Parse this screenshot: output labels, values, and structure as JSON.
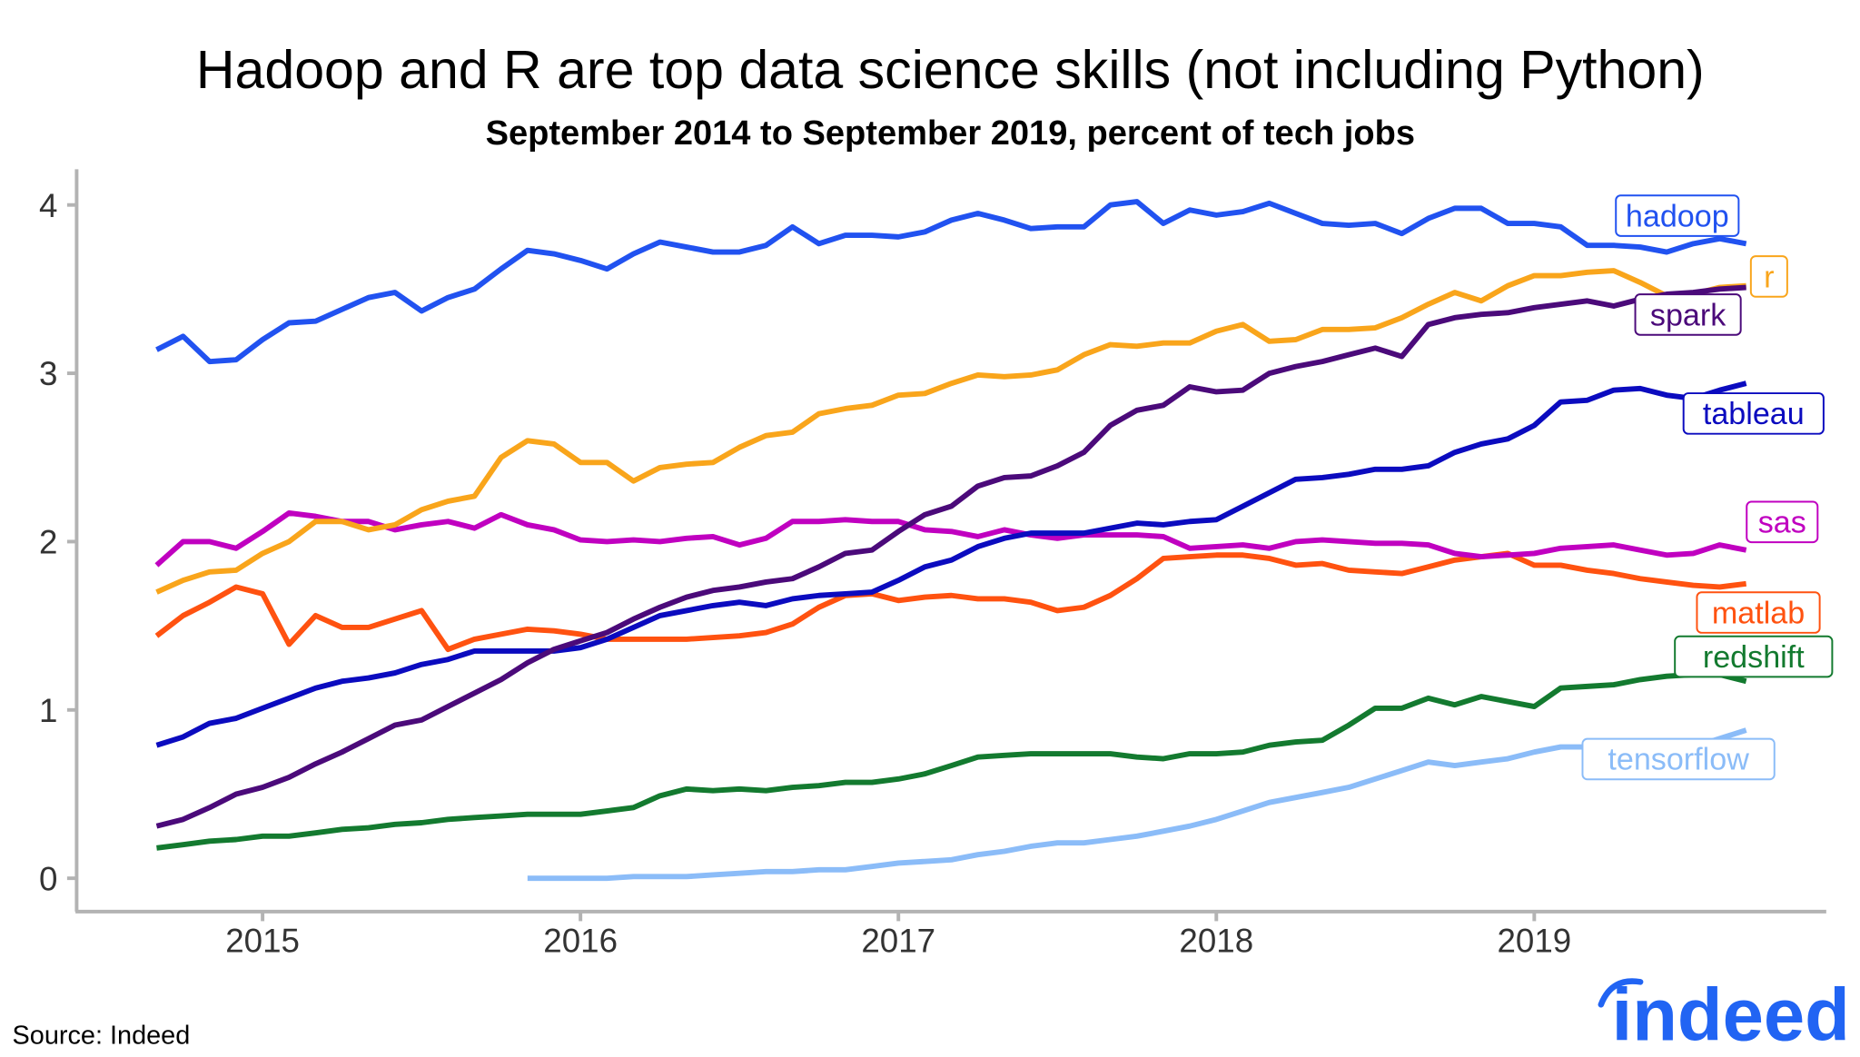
{
  "chart_data": {
    "type": "line",
    "title": "Hadoop and R are top data science skills (not including Python)",
    "subtitle": "September 2014 to September 2019, percent of tech jobs",
    "xlabel": "",
    "ylabel": "",
    "xlim": [
      "2014-09",
      "2019-09"
    ],
    "ylim": [
      0,
      4
    ],
    "x_ticks": [
      "2015",
      "2016",
      "2017",
      "2018",
      "2019"
    ],
    "y_ticks": [
      "0",
      "1",
      "2",
      "3",
      "4"
    ],
    "grid": false,
    "legend": "direct labels at right end of lines",
    "start_month": "2014-09",
    "frequency": "monthly",
    "series": [
      {
        "name": "hadoop",
        "color": "#2152f0",
        "values": [
          3.14,
          3.22,
          3.07,
          3.08,
          3.2,
          3.3,
          3.31,
          3.38,
          3.45,
          3.48,
          3.37,
          3.45,
          3.5,
          3.62,
          3.73,
          3.71,
          3.67,
          3.62,
          3.71,
          3.78,
          3.75,
          3.72,
          3.72,
          3.76,
          3.87,
          3.77,
          3.82,
          3.82,
          3.81,
          3.84,
          3.91,
          3.95,
          3.91,
          3.86,
          3.87,
          3.87,
          4.0,
          4.02,
          3.89,
          3.97,
          3.94,
          3.96,
          4.01,
          3.95,
          3.89,
          3.88,
          3.89,
          3.83,
          3.92,
          3.98,
          3.98,
          3.89,
          3.89,
          3.87,
          3.76,
          3.76,
          3.75,
          3.72,
          3.77,
          3.8,
          3.77
        ]
      },
      {
        "name": "r",
        "color": "#f9a51b",
        "values": [
          1.7,
          1.77,
          1.82,
          1.83,
          1.93,
          2.0,
          2.12,
          2.12,
          2.07,
          2.1,
          2.19,
          2.24,
          2.27,
          2.5,
          2.6,
          2.58,
          2.47,
          2.47,
          2.36,
          2.44,
          2.46,
          2.47,
          2.56,
          2.63,
          2.65,
          2.76,
          2.79,
          2.81,
          2.87,
          2.88,
          2.94,
          2.99,
          2.98,
          2.99,
          3.02,
          3.11,
          3.17,
          3.16,
          3.18,
          3.18,
          3.25,
          3.29,
          3.19,
          3.2,
          3.26,
          3.26,
          3.27,
          3.33,
          3.41,
          3.48,
          3.43,
          3.52,
          3.58,
          3.58,
          3.6,
          3.61,
          3.54,
          3.46,
          3.47,
          3.51,
          3.52
        ]
      },
      {
        "name": "spark",
        "color": "#4b0a7a",
        "values": [
          0.31,
          0.35,
          0.42,
          0.5,
          0.54,
          0.6,
          0.68,
          0.75,
          0.83,
          0.91,
          0.94,
          1.02,
          1.1,
          1.18,
          1.28,
          1.36,
          1.41,
          1.46,
          1.54,
          1.61,
          1.67,
          1.71,
          1.73,
          1.76,
          1.78,
          1.85,
          1.93,
          1.95,
          2.06,
          2.16,
          2.21,
          2.33,
          2.38,
          2.39,
          2.45,
          2.53,
          2.69,
          2.78,
          2.81,
          2.92,
          2.89,
          2.9,
          3.0,
          3.04,
          3.07,
          3.11,
          3.15,
          3.1,
          3.29,
          3.33,
          3.35,
          3.36,
          3.39,
          3.41,
          3.43,
          3.4,
          3.44,
          3.47,
          3.48,
          3.5,
          3.51
        ]
      },
      {
        "name": "tableau",
        "color": "#0b0bbf",
        "values": [
          0.79,
          0.84,
          0.92,
          0.95,
          1.01,
          1.07,
          1.13,
          1.17,
          1.19,
          1.22,
          1.27,
          1.3,
          1.35,
          1.35,
          1.35,
          1.35,
          1.37,
          1.42,
          1.49,
          1.56,
          1.59,
          1.62,
          1.64,
          1.62,
          1.66,
          1.68,
          1.69,
          1.7,
          1.77,
          1.85,
          1.89,
          1.97,
          2.02,
          2.05,
          2.05,
          2.05,
          2.08,
          2.11,
          2.1,
          2.12,
          2.13,
          2.21,
          2.29,
          2.37,
          2.38,
          2.4,
          2.43,
          2.43,
          2.45,
          2.53,
          2.58,
          2.61,
          2.69,
          2.83,
          2.84,
          2.9,
          2.91,
          2.87,
          2.85,
          2.9,
          2.94
        ]
      },
      {
        "name": "sas",
        "color": "#c000c0",
        "values": [
          1.86,
          2.0,
          2.0,
          1.96,
          2.06,
          2.17,
          2.15,
          2.12,
          2.12,
          2.07,
          2.1,
          2.12,
          2.08,
          2.16,
          2.1,
          2.07,
          2.01,
          2.0,
          2.01,
          2.0,
          2.02,
          2.03,
          1.98,
          2.02,
          2.12,
          2.12,
          2.13,
          2.12,
          2.12,
          2.07,
          2.06,
          2.03,
          2.07,
          2.04,
          2.02,
          2.04,
          2.04,
          2.04,
          2.03,
          1.96,
          1.97,
          1.98,
          1.96,
          2.0,
          2.01,
          2.0,
          1.99,
          1.99,
          1.98,
          1.93,
          1.91,
          1.92,
          1.93,
          1.96,
          1.97,
          1.98,
          1.95,
          1.92,
          1.93,
          1.98,
          1.95
        ]
      },
      {
        "name": "matlab",
        "color": "#ff5210",
        "values": [
          1.44,
          1.56,
          1.64,
          1.73,
          1.69,
          1.39,
          1.56,
          1.49,
          1.49,
          1.54,
          1.59,
          1.36,
          1.42,
          1.45,
          1.48,
          1.47,
          1.45,
          1.42,
          1.42,
          1.42,
          1.42,
          1.43,
          1.44,
          1.46,
          1.51,
          1.61,
          1.68,
          1.69,
          1.65,
          1.67,
          1.68,
          1.66,
          1.66,
          1.64,
          1.59,
          1.61,
          1.68,
          1.78,
          1.9,
          1.91,
          1.92,
          1.92,
          1.9,
          1.86,
          1.87,
          1.83,
          1.82,
          1.81,
          1.85,
          1.89,
          1.91,
          1.93,
          1.86,
          1.86,
          1.83,
          1.81,
          1.78,
          1.76,
          1.74,
          1.73,
          1.75
        ]
      },
      {
        "name": "redshift",
        "color": "#137a2f",
        "values": [
          0.18,
          0.2,
          0.22,
          0.23,
          0.25,
          0.25,
          0.27,
          0.29,
          0.3,
          0.32,
          0.33,
          0.35,
          0.36,
          0.37,
          0.38,
          0.38,
          0.38,
          0.4,
          0.42,
          0.49,
          0.53,
          0.52,
          0.53,
          0.52,
          0.54,
          0.55,
          0.57,
          0.57,
          0.59,
          0.62,
          0.67,
          0.72,
          0.73,
          0.74,
          0.74,
          0.74,
          0.74,
          0.72,
          0.71,
          0.74,
          0.74,
          0.75,
          0.79,
          0.81,
          0.82,
          0.91,
          1.01,
          1.01,
          1.07,
          1.03,
          1.08,
          1.05,
          1.02,
          1.13,
          1.14,
          1.15,
          1.18,
          1.2,
          1.21,
          1.21,
          1.17
        ]
      },
      {
        "name": "tensorflow",
        "color": "#8bbcf8",
        "values": [
          null,
          null,
          null,
          null,
          null,
          null,
          null,
          null,
          null,
          null,
          null,
          null,
          null,
          null,
          0,
          0,
          0,
          0,
          0.01,
          0.01,
          0.01,
          0.02,
          0.03,
          0.04,
          0.04,
          0.05,
          0.05,
          0.07,
          0.09,
          0.1,
          0.11,
          0.14,
          0.16,
          0.19,
          0.21,
          0.21,
          0.23,
          0.25,
          0.28,
          0.31,
          0.35,
          0.4,
          0.45,
          0.48,
          0.51,
          0.54,
          0.59,
          0.64,
          0.69,
          0.67,
          0.69,
          0.71,
          0.75,
          0.78,
          0.78,
          0.78,
          0.78,
          0.74,
          0.78,
          0.83,
          0.88
        ]
      }
    ]
  },
  "source": "Source: Indeed",
  "logo_text": "indeed"
}
